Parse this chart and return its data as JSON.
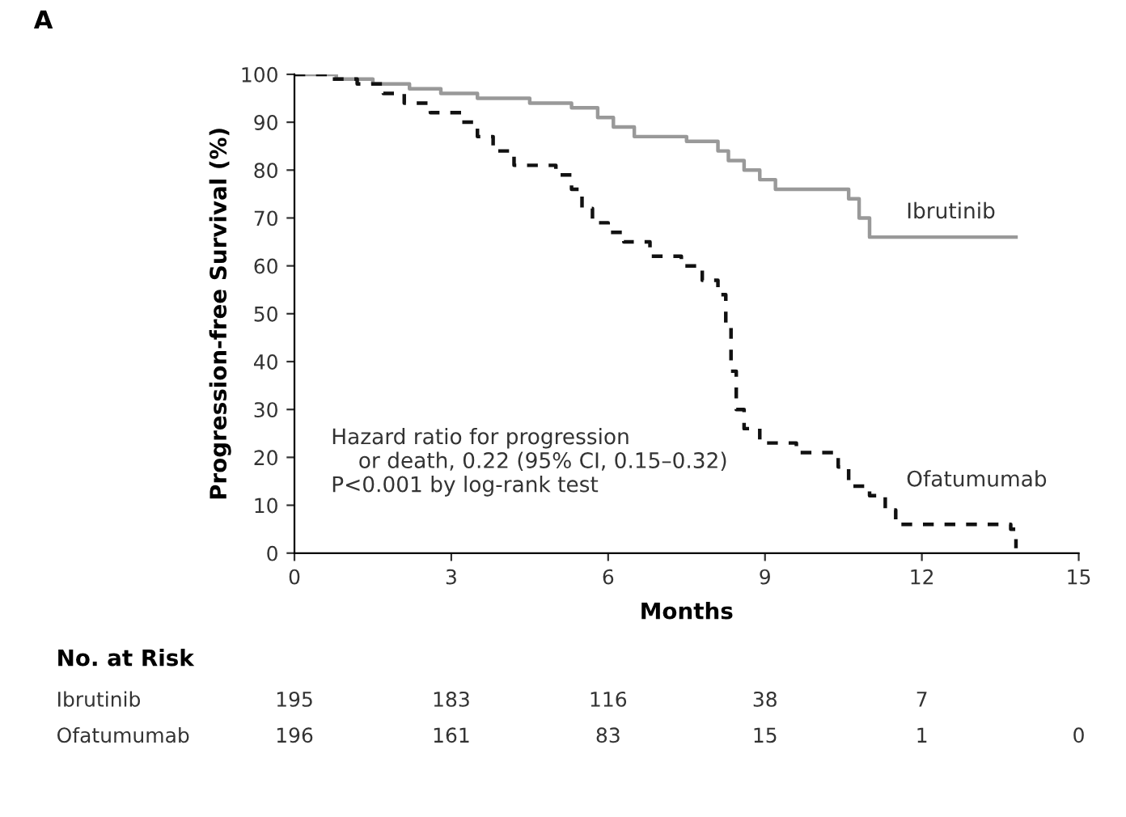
{
  "chart_data": {
    "type": "step",
    "xlabel": "Months",
    "ylabel": "Progression-free Survival (%)",
    "xlim": [
      0,
      15
    ],
    "xticks": [
      0,
      3,
      6,
      9,
      12,
      15
    ],
    "ylim": [
      0,
      100
    ],
    "yticks": [
      0,
      10,
      20,
      30,
      40,
      50,
      60,
      70,
      80,
      90,
      100
    ],
    "grid": false,
    "legend": false,
    "series": [
      {
        "name": "Ibrutinib",
        "color": "#999999",
        "line_style": "solid",
        "x": [
          0,
          0.8,
          1.5,
          2.2,
          2.8,
          3.5,
          4.5,
          5.3,
          5.8,
          6.1,
          6.5,
          7.5,
          8.1,
          8.3,
          8.6,
          8.9,
          9.2,
          10.6,
          10.8,
          11.0,
          13.8
        ],
        "values": [
          100,
          99,
          98,
          97,
          96,
          95,
          94,
          93,
          91,
          89,
          87,
          86,
          84,
          82,
          80,
          78,
          76,
          74,
          70,
          66,
          66
        ]
      },
      {
        "name": "Ofatumumab",
        "color": "#111111",
        "line_style": "dashed",
        "x": [
          0,
          0.7,
          1.2,
          1.7,
          2.1,
          2.6,
          3.2,
          3.5,
          3.8,
          4.2,
          5.0,
          5.3,
          5.5,
          5.7,
          6.0,
          6.3,
          6.8,
          7.4,
          7.8,
          8.1,
          8.25,
          8.35,
          8.45,
          8.6,
          8.9,
          9.6,
          10.4,
          10.6,
          11.0,
          11.3,
          11.5,
          13.7,
          13.8
        ],
        "values": [
          100,
          99,
          98,
          96,
          94,
          92,
          90,
          87,
          84,
          81,
          79,
          76,
          72,
          69,
          67,
          65,
          62,
          60,
          57,
          54,
          48,
          38,
          30,
          26,
          23,
          21,
          18,
          14,
          12,
          9,
          6,
          5,
          1
        ]
      }
    ],
    "annotations": [
      "A",
      "Hazard ratio for progression\n    or death, 0.22 (95% CI, 0.15–0.32)\nP<0.001 by log-rank test",
      "No. at Risk",
      "Ibrutinib",
      "195",
      "183",
      "116",
      "38",
      "7",
      "Ofatumumab",
      "196",
      "161",
      "83",
      "15",
      "1",
      "0"
    ]
  }
}
